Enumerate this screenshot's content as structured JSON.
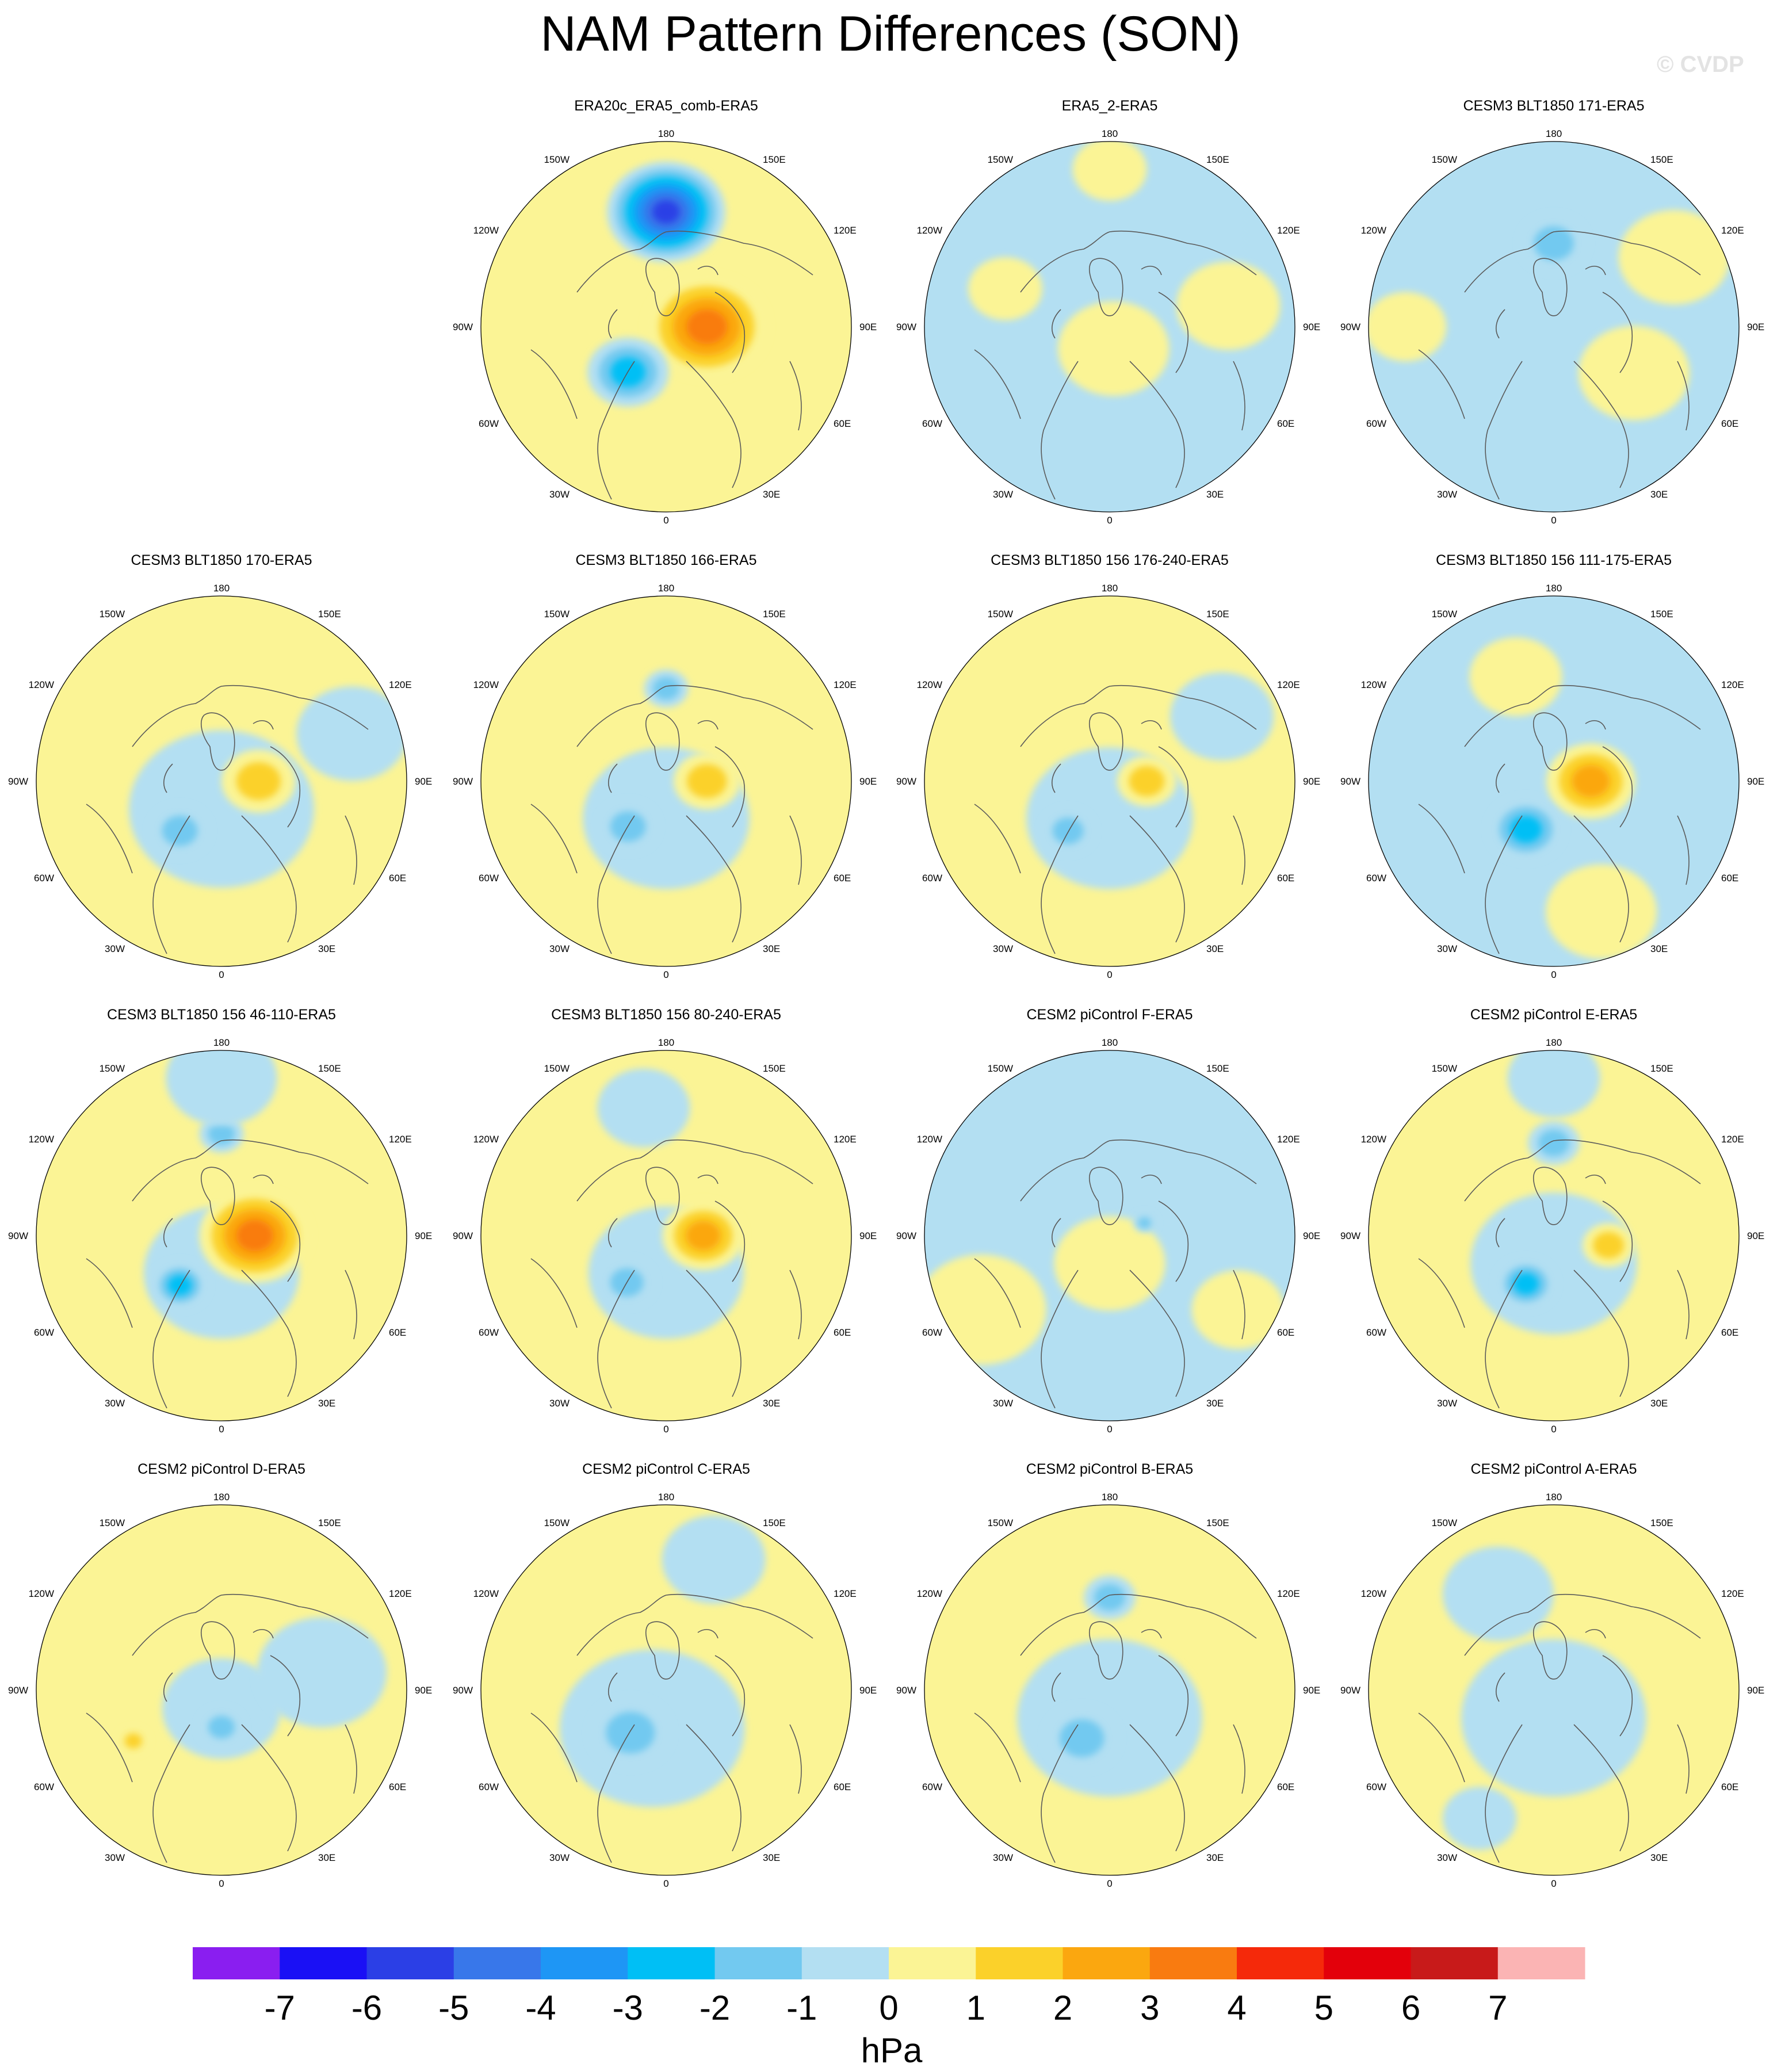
{
  "title": "NAM Pattern Differences (SON)",
  "watermark": "© CVDP",
  "units": "hPa",
  "colors": {
    "neg7": "#8a1ef0",
    "neg6": "#1a10f5",
    "neg5": "#2b3fe6",
    "neg4": "#3877ea",
    "neg3": "#1e96f5",
    "neg2": "#00bff5",
    "neg1": "#72c9f0",
    "neg0": "#b3dff2",
    "pos0": "#fbf495",
    "pos1": "#fbd12a",
    "pos2": "#fba70f",
    "pos3": "#f97b10",
    "pos4": "#f5290a",
    "pos5": "#e3000b",
    "pos6": "#c81a1a",
    "pos7": "#fbb4b4",
    "coast": "#5a5a5a"
  },
  "chart_data": {
    "type": "polar-contour-map-grid",
    "projection": "north-polar-stereographic",
    "longitude_labels": [
      "180",
      "150E",
      "120E",
      "90E",
      "60E",
      "30E",
      "0",
      "30W",
      "60W",
      "90W",
      "120W",
      "150W"
    ],
    "colorbar": {
      "ticks": [
        "-7",
        "-6",
        "-5",
        "-4",
        "-3",
        "-2",
        "-1",
        "0",
        "1",
        "2",
        "3",
        "4",
        "5",
        "6",
        "7"
      ],
      "levels": [
        -7,
        -6,
        -5,
        -4,
        -3,
        -2,
        -1,
        0,
        1,
        2,
        3,
        4,
        5,
        6,
        7
      ]
    },
    "panels": [
      {
        "title": "ERA20c_ERA5_comb-ERA5",
        "base": "pos0",
        "features": [
          {
            "lon": 180,
            "r": 0.62,
            "value": -5.5,
            "size": 0.32
          },
          {
            "lon": 90,
            "r": 0.22,
            "value": 3.5,
            "size": 0.33
          },
          {
            "lon": 320,
            "r": 0.32,
            "value": -2.5,
            "size": 0.22
          }
        ]
      },
      {
        "title": "ERA5_2-ERA5",
        "base": "neg0",
        "features": [
          {
            "lon": 10,
            "r": 0.12,
            "value": 0.5,
            "size": 0.3
          },
          {
            "lon": 250,
            "r": 0.6,
            "value": 0.5,
            "size": 0.2
          },
          {
            "lon": 100,
            "r": 0.65,
            "value": 0.5,
            "size": 0.28
          },
          {
            "lon": 180,
            "r": 0.85,
            "value": 0.5,
            "size": 0.2
          }
        ]
      },
      {
        "title": "CESM3 BLT1850 171-ERA5",
        "base": "neg0",
        "features": [
          {
            "lon": 180,
            "r": 0.45,
            "value": -1.5,
            "size": 0.18
          },
          {
            "lon": 60,
            "r": 0.5,
            "value": 0.5,
            "size": 0.3
          },
          {
            "lon": 120,
            "r": 0.75,
            "value": 0.5,
            "size": 0.3
          },
          {
            "lon": 270,
            "r": 0.8,
            "value": 0.5,
            "size": 0.22
          }
        ]
      },
      {
        "title": "CESM3 BLT1850 170-ERA5",
        "base": "pos0",
        "features": [
          {
            "lon": 0,
            "r": 0.15,
            "value": -0.5,
            "size": 0.5
          },
          {
            "lon": 90,
            "r": 0.2,
            "value": 1.5,
            "size": 0.2
          },
          {
            "lon": 320,
            "r": 0.35,
            "value": -1.5,
            "size": 0.16
          },
          {
            "lon": 110,
            "r": 0.75,
            "value": -0.5,
            "size": 0.3
          }
        ]
      },
      {
        "title": "CESM3 BLT1850 166-ERA5",
        "base": "pos0",
        "features": [
          {
            "lon": 0,
            "r": 0.2,
            "value": -0.5,
            "size": 0.45
          },
          {
            "lon": 90,
            "r": 0.22,
            "value": 1.5,
            "size": 0.18
          },
          {
            "lon": 320,
            "r": 0.32,
            "value": -1.5,
            "size": 0.16
          },
          {
            "lon": 180,
            "r": 0.5,
            "value": -1.5,
            "size": 0.12
          }
        ]
      },
      {
        "title": "CESM3 BLT1850 156 176-240-ERA5",
        "base": "pos0",
        "features": [
          {
            "lon": 0,
            "r": 0.2,
            "value": -0.5,
            "size": 0.45
          },
          {
            "lon": 90,
            "r": 0.2,
            "value": 1.5,
            "size": 0.16
          },
          {
            "lon": 320,
            "r": 0.35,
            "value": -1.5,
            "size": 0.14
          },
          {
            "lon": 120,
            "r": 0.7,
            "value": -0.5,
            "size": 0.28
          }
        ]
      },
      {
        "title": "CESM3 BLT1850 156 111-175-ERA5",
        "base": "neg0",
        "features": [
          {
            "lon": 90,
            "r": 0.2,
            "value": 2.5,
            "size": 0.24
          },
          {
            "lon": 330,
            "r": 0.3,
            "value": -2.5,
            "size": 0.2
          },
          {
            "lon": 200,
            "r": 0.6,
            "value": 0.5,
            "size": 0.25
          },
          {
            "lon": 20,
            "r": 0.75,
            "value": 0.5,
            "size": 0.3
          }
        ]
      },
      {
        "title": "CESM3 BLT1850 156 46-110-ERA5",
        "base": "pos0",
        "features": [
          {
            "lon": 0,
            "r": 0.2,
            "value": -0.5,
            "size": 0.42
          },
          {
            "lon": 90,
            "r": 0.18,
            "value": 3.5,
            "size": 0.3
          },
          {
            "lon": 320,
            "r": 0.35,
            "value": -2.5,
            "size": 0.15
          },
          {
            "lon": 180,
            "r": 0.55,
            "value": -1.5,
            "size": 0.12
          },
          {
            "lon": 180,
            "r": 0.85,
            "value": -0.5,
            "size": 0.3
          }
        ]
      },
      {
        "title": "CESM3 BLT1850 156 80-240-ERA5",
        "base": "pos0",
        "features": [
          {
            "lon": 0,
            "r": 0.2,
            "value": -0.5,
            "size": 0.42
          },
          {
            "lon": 90,
            "r": 0.2,
            "value": 2.5,
            "size": 0.22
          },
          {
            "lon": 320,
            "r": 0.33,
            "value": -1.5,
            "size": 0.15
          },
          {
            "lon": 190,
            "r": 0.7,
            "value": -0.5,
            "size": 0.25
          }
        ]
      },
      {
        "title": "CESM2 piControl F-ERA5",
        "base": "neg0",
        "features": [
          {
            "lon": 0,
            "r": 0.15,
            "value": 0.5,
            "size": 0.3
          },
          {
            "lon": 300,
            "r": 0.8,
            "value": 0.5,
            "size": 0.35
          },
          {
            "lon": 60,
            "r": 0.8,
            "value": 0.5,
            "size": 0.25
          },
          {
            "lon": 110,
            "r": 0.2,
            "value": -1.5,
            "size": 0.06
          }
        ]
      },
      {
        "title": "CESM2 piControl E-ERA5",
        "base": "pos0",
        "features": [
          {
            "lon": 0,
            "r": 0.15,
            "value": -0.5,
            "size": 0.45
          },
          {
            "lon": 330,
            "r": 0.3,
            "value": -2.5,
            "size": 0.16
          },
          {
            "lon": 80,
            "r": 0.3,
            "value": 1.5,
            "size": 0.14
          },
          {
            "lon": 180,
            "r": 0.5,
            "value": -1.5,
            "size": 0.14
          },
          {
            "lon": 180,
            "r": 0.85,
            "value": -0.5,
            "size": 0.25
          }
        ]
      },
      {
        "title": "CESM2 piControl D-ERA5",
        "base": "pos0",
        "features": [
          {
            "lon": 0,
            "r": 0.1,
            "value": -0.5,
            "size": 0.32
          },
          {
            "lon": 100,
            "r": 0.55,
            "value": -0.5,
            "size": 0.35
          },
          {
            "lon": 300,
            "r": 0.55,
            "value": 1.5,
            "size": 0.08
          },
          {
            "lon": 0,
            "r": 0.2,
            "value": -1.5,
            "size": 0.12
          }
        ]
      },
      {
        "title": "CESM2 piControl C-ERA5",
        "base": "pos0",
        "features": [
          {
            "lon": 340,
            "r": 0.22,
            "value": -0.5,
            "size": 0.5
          },
          {
            "lon": 320,
            "r": 0.3,
            "value": -1.5,
            "size": 0.22
          },
          {
            "lon": 160,
            "r": 0.75,
            "value": -0.5,
            "size": 0.28
          }
        ]
      },
      {
        "title": "CESM2 piControl B-ERA5",
        "base": "pos0",
        "features": [
          {
            "lon": 0,
            "r": 0.15,
            "value": -0.5,
            "size": 0.5
          },
          {
            "lon": 330,
            "r": 0.3,
            "value": -1.5,
            "size": 0.2
          },
          {
            "lon": 180,
            "r": 0.5,
            "value": -1.5,
            "size": 0.14
          }
        ]
      },
      {
        "title": "CESM2 piControl A-ERA5",
        "base": "pos0",
        "features": [
          {
            "lon": 0,
            "r": 0.15,
            "value": -0.5,
            "size": 0.5
          },
          {
            "lon": 210,
            "r": 0.6,
            "value": -0.5,
            "size": 0.3
          },
          {
            "lon": 330,
            "r": 0.8,
            "value": -0.5,
            "size": 0.2
          }
        ]
      }
    ]
  }
}
